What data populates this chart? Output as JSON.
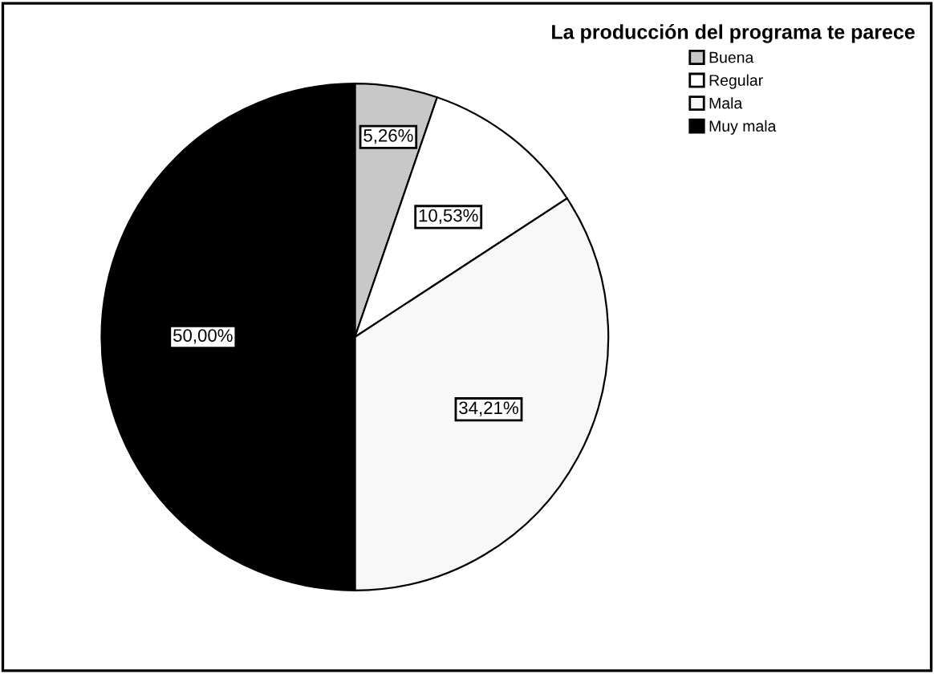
{
  "chart_data": {
    "type": "pie",
    "legend_title": "La producción del programa te parece",
    "categories": [
      "Buena",
      "Regular",
      "Mala",
      "Muy mala"
    ],
    "values": [
      5.26,
      10.53,
      34.21,
      50.0
    ],
    "value_labels": [
      "5,26%",
      "10,53%",
      "34,21%",
      "50,00%"
    ],
    "colors": [
      "#c8c8c8",
      "#ffffff",
      "#f8f8f8",
      "#000000"
    ],
    "legend": "top right"
  }
}
